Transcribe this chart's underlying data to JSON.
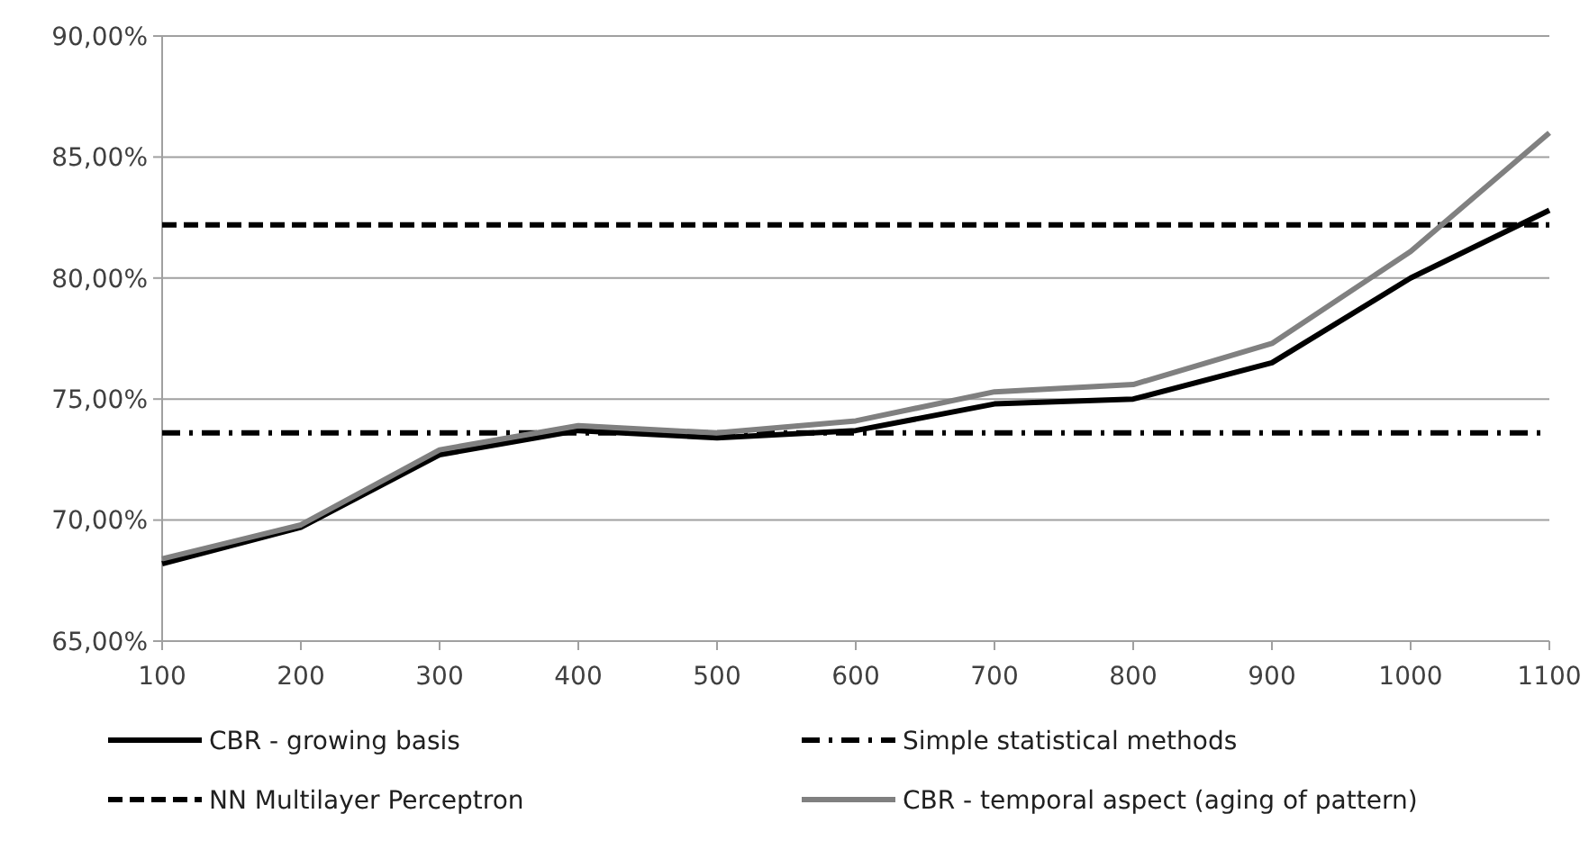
{
  "chart_data": {
    "type": "line",
    "categories": [
      "100",
      "200",
      "300",
      "400",
      "500",
      "600",
      "700",
      "800",
      "900",
      "1000",
      "1100"
    ],
    "ylim": [
      65,
      90
    ],
    "yticks": [
      {
        "value": 65,
        "label": "65,00%"
      },
      {
        "value": 70,
        "label": "70,00%"
      },
      {
        "value": 75,
        "label": "75,00%"
      },
      {
        "value": 80,
        "label": "80,00%"
      },
      {
        "value": 85,
        "label": "85,00%"
      },
      {
        "value": 90,
        "label": "90,00%"
      }
    ],
    "grid": "y",
    "legend": "bottom",
    "marker": "none",
    "series": [
      {
        "name": "CBR - growing basis",
        "color": "#000000",
        "line_style": "solid",
        "values": [
          68.2,
          69.7,
          72.7,
          73.7,
          73.4,
          73.7,
          74.8,
          75.0,
          76.5,
          80.0,
          82.8
        ]
      },
      {
        "name": "Simple statistical methods",
        "color": "#000000",
        "line_style": "dashdot",
        "values": [
          73.6,
          73.6,
          73.6,
          73.6,
          73.6,
          73.6,
          73.6,
          73.6,
          73.6,
          73.6,
          73.6
        ]
      },
      {
        "name": "NN Multilayer Perceptron",
        "color": "#000000",
        "line_style": "dashed",
        "values": [
          82.2,
          82.2,
          82.2,
          82.2,
          82.2,
          82.2,
          82.2,
          82.2,
          82.2,
          82.2,
          82.2
        ]
      },
      {
        "name": "CBR - temporal aspect (aging of pattern)",
        "color": "#808080",
        "line_style": "solid",
        "values": [
          68.4,
          69.8,
          72.9,
          73.9,
          73.6,
          74.1,
          75.3,
          75.6,
          77.3,
          81.1,
          86.0
        ]
      }
    ]
  }
}
